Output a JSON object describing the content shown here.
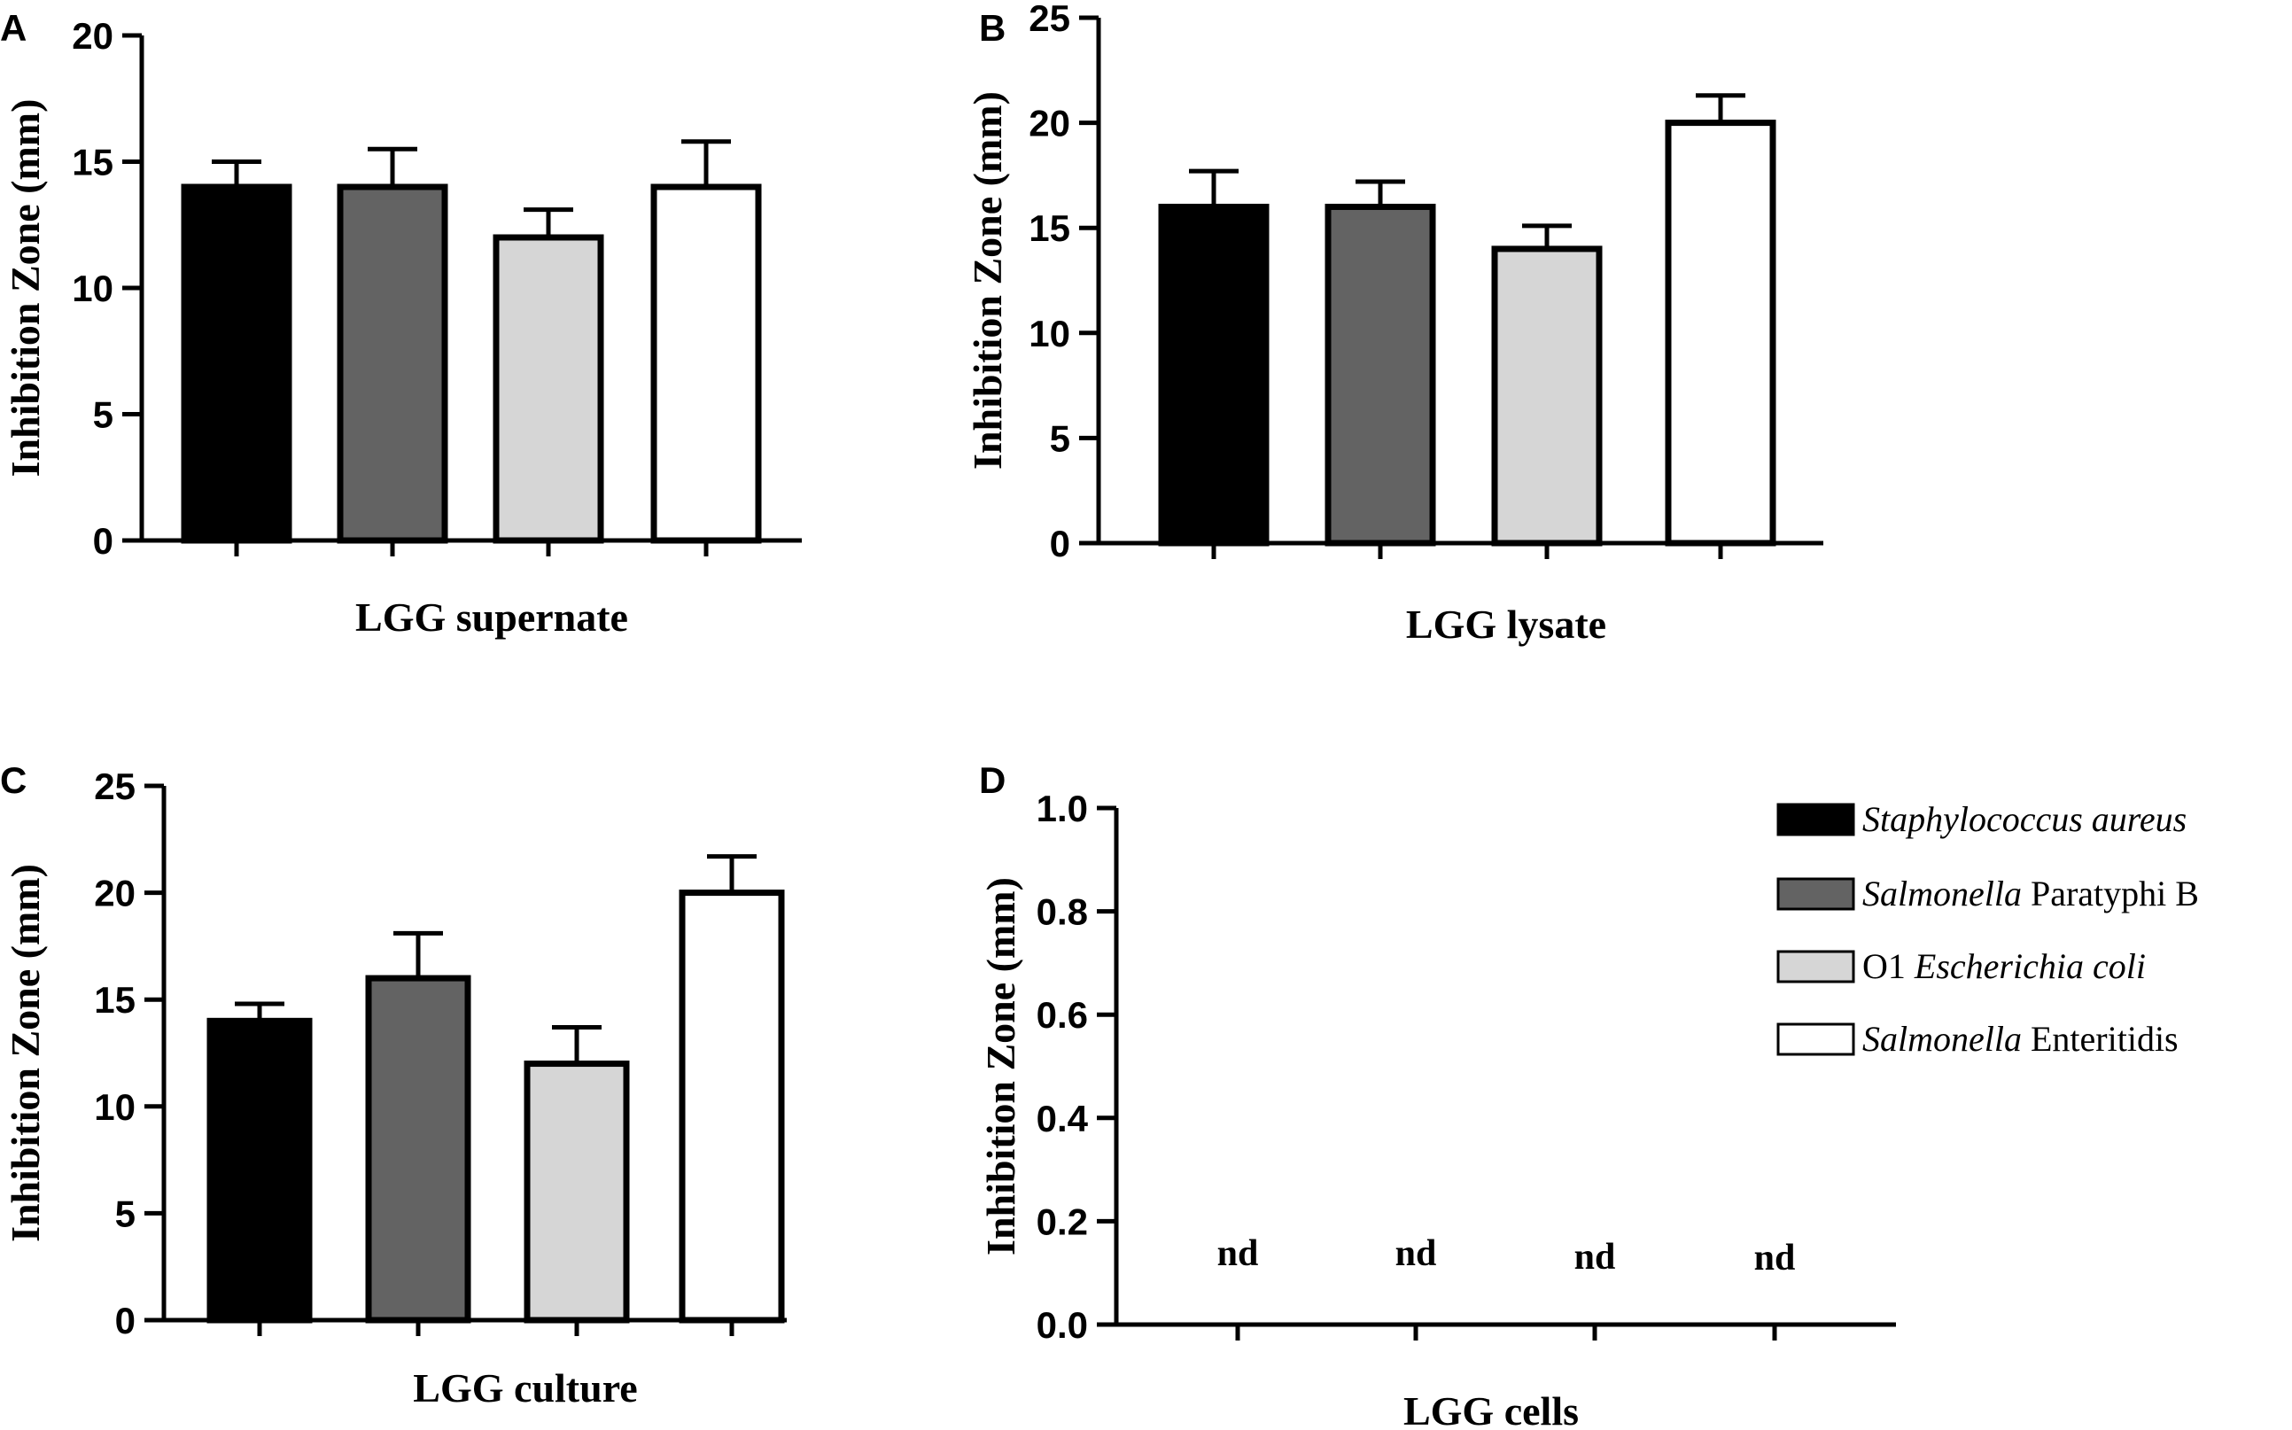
{
  "y_axis_label": "Inhibition Zone (mm)",
  "categories": [
    "Staphylococcus aureus",
    "Salmonella Paratyphi B",
    "O1 Escherichia coli",
    "Salmonella Enteritidis"
  ],
  "colors": {
    "Staphylococcus aureus": "#000000",
    "Salmonella Paratyphi B": "#636363",
    "O1 Escherichia coli": "#d6d6d6",
    "Salmonella Enteritidis": "#ffffff"
  },
  "legend": [
    {
      "italic": "Staphylococcus aureus",
      "roman": "",
      "order": "italic-first"
    },
    {
      "italic": "Salmonella",
      "roman": " Paratyphi B",
      "order": "italic-first"
    },
    {
      "italic": "Escherichia coli",
      "roman": "O1 ",
      "order": "roman-first"
    },
    {
      "italic": "Salmonella",
      "roman": " Enteritidis",
      "order": "italic-first"
    }
  ],
  "chart_data": [
    {
      "panel": "A",
      "type": "bar",
      "xlabel": "LGG supernate",
      "ylabel": "Inhibition Zone (mm)",
      "ylim": [
        0,
        20
      ],
      "yticks": [
        0,
        5,
        10,
        15,
        20
      ],
      "categories": [
        "Staphylococcus aureus",
        "Salmonella Paratyphi B",
        "O1 Escherichia coli",
        "Salmonella Enteritidis"
      ],
      "values": [
        14,
        14,
        12,
        14
      ],
      "errors": [
        1,
        1.5,
        1.1,
        1.8
      ]
    },
    {
      "panel": "B",
      "type": "bar",
      "xlabel": "LGG lysate",
      "ylabel": "Inhibition Zone (mm)",
      "ylim": [
        0,
        25
      ],
      "yticks": [
        0,
        5,
        10,
        15,
        20,
        25
      ],
      "categories": [
        "Staphylococcus aureus",
        "Salmonella Paratyphi B",
        "O1 Escherichia coli",
        "Salmonella Enteritidis"
      ],
      "values": [
        16,
        16,
        14,
        20
      ],
      "errors": [
        1.7,
        1.2,
        1.1,
        1.3
      ]
    },
    {
      "panel": "C",
      "type": "bar",
      "xlabel": "LGG culture",
      "ylabel": "Inhibition Zone (mm)",
      "ylim": [
        0,
        25
      ],
      "yticks": [
        0,
        5,
        10,
        15,
        20,
        25
      ],
      "categories": [
        "Staphylococcus aureus",
        "Salmonella Paratyphi B",
        "O1 Escherichia coli",
        "Salmonella Enteritidis"
      ],
      "values": [
        14,
        16,
        12,
        20
      ],
      "errors": [
        0.8,
        2.1,
        1.7,
        1.7
      ]
    },
    {
      "panel": "D",
      "type": "bar",
      "xlabel": "LGG cells",
      "ylabel": "Inhibition Zone (mm)",
      "ylim": [
        0,
        1.0
      ],
      "yticks": [
        "0.0",
        "0.2",
        "0.4",
        "0.6",
        "0.8",
        "1.0"
      ],
      "categories": [
        "Staphylococcus aureus",
        "Salmonella Paratyphi B",
        "O1 Escherichia coli",
        "Salmonella Enteritidis"
      ],
      "values": [
        null,
        null,
        null,
        null
      ],
      "errors": [
        null,
        null,
        null,
        null
      ],
      "annotations": [
        "nd",
        "nd",
        "nd",
        "nd"
      ]
    }
  ]
}
